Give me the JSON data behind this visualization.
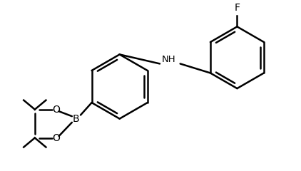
{
  "bg_color": "#ffffff",
  "line_color": "#000000",
  "line_width": 1.8,
  "fig_width": 4.22,
  "fig_height": 2.4,
  "dpi": 100,
  "label_F": "F",
  "label_NH": "NH",
  "label_B": "B",
  "label_O1": "O",
  "label_O2": "O"
}
